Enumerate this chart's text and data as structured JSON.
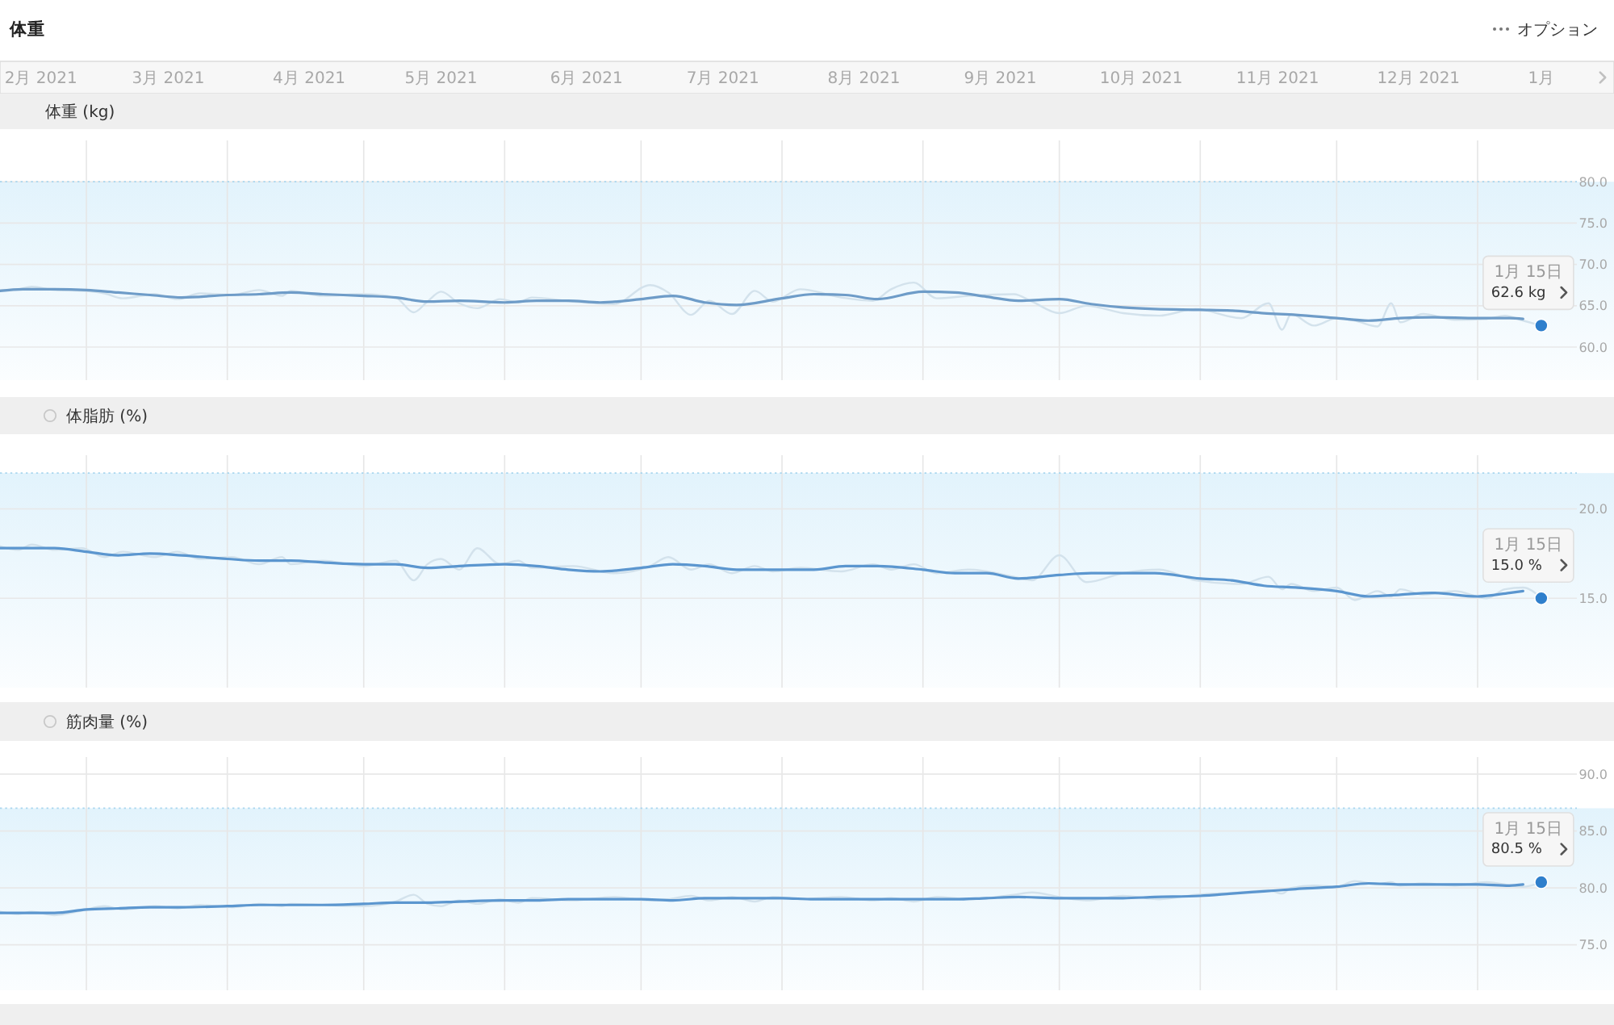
{
  "chart_data": [
    {
      "type": "line",
      "title": "体重",
      "ylabel": "体重 (kg)",
      "x": [
        "2021-02-10",
        "2021-02-14",
        "2021-02-17",
        "2021-02-22",
        "2021-02-28",
        "2021-03-05",
        "2021-03-09",
        "2021-03-16",
        "2021-03-21",
        "2021-03-26",
        "2021-04-02",
        "2021-04-08",
        "2021-04-13",
        "2021-04-15",
        "2021-04-22",
        "2021-05-01",
        "2021-05-08",
        "2021-05-12",
        "2021-05-15",
        "2021-05-18",
        "2021-05-22",
        "2021-05-26",
        "2021-05-31",
        "2021-06-04",
        "2021-06-07",
        "2021-06-16",
        "2021-06-25",
        "2021-07-03",
        "2021-07-07",
        "2021-07-12",
        "2021-07-16",
        "2021-07-21",
        "2021-07-26",
        "2021-07-30",
        "2021-08-05",
        "2021-08-14",
        "2021-08-21",
        "2021-08-25",
        "2021-08-30",
        "2021-09-04",
        "2021-09-11",
        "2021-09-21",
        "2021-09-25",
        "2021-10-01",
        "2021-10-07",
        "2021-10-15",
        "2021-10-23",
        "2021-10-31",
        "2021-11-10",
        "2021-11-16",
        "2021-11-19",
        "2021-11-21",
        "2021-11-26",
        "2021-12-01",
        "2021-12-05",
        "2021-12-10",
        "2021-12-13",
        "2021-12-15",
        "2021-12-20",
        "2021-12-27",
        "2022-01-03",
        "2022-01-07",
        "2022-01-11",
        "2022-01-15"
      ],
      "series": [
        {
          "color": "#d3e2ec",
          "values": [
            66.9,
            67.0,
            67.3,
            66.9,
            66.8,
            66.5,
            65.9,
            66.4,
            65.8,
            66.5,
            66.3,
            66.9,
            66.2,
            66.8,
            66.2,
            66.4,
            66.0,
            64.2,
            65.5,
            66.7,
            65.3,
            64.7,
            65.8,
            65.4,
            66.0,
            65.5,
            65.2,
            67.5,
            66.6,
            63.9,
            65.6,
            64.0,
            66.8,
            65.5,
            67.0,
            66.0,
            65.6,
            67.0,
            67.8,
            65.9,
            66.2,
            66.4,
            65.5,
            64.1,
            65.0,
            64.1,
            63.8,
            64.6,
            63.5,
            65.3,
            62.1,
            64.0,
            62.6,
            63.5,
            63.2,
            62.5,
            65.3,
            63.0,
            64.0,
            63.3,
            63.4,
            63.8,
            63.2,
            62.6
          ]
        },
        {
          "color": "#6e9cc8",
          "x": [
            "2021-02-10",
            "2021-02-15",
            "2021-02-22",
            "2021-03-01",
            "2021-03-08",
            "2021-03-15",
            "2021-03-22",
            "2021-04-01",
            "2021-04-08",
            "2021-04-15",
            "2021-04-22",
            "2021-05-01",
            "2021-05-08",
            "2021-05-15",
            "2021-05-22",
            "2021-06-01",
            "2021-06-08",
            "2021-06-15",
            "2021-06-22",
            "2021-07-01",
            "2021-07-08",
            "2021-07-15",
            "2021-07-22",
            "2021-08-01",
            "2021-08-08",
            "2021-08-15",
            "2021-08-22",
            "2021-09-01",
            "2021-09-08",
            "2021-09-15",
            "2021-09-22",
            "2021-10-01",
            "2021-10-08",
            "2021-10-15",
            "2021-10-22",
            "2021-11-01",
            "2021-11-08",
            "2021-11-15",
            "2021-11-22",
            "2021-12-01",
            "2021-12-08",
            "2021-12-15",
            "2021-12-22",
            "2022-01-01",
            "2022-01-08",
            "2022-01-11"
          ],
          "values": [
            66.8,
            67.0,
            67.0,
            66.9,
            66.6,
            66.3,
            66.0,
            66.3,
            66.4,
            66.6,
            66.4,
            66.2,
            66.0,
            65.5,
            65.6,
            65.4,
            65.6,
            65.6,
            65.4,
            65.8,
            66.2,
            65.4,
            65.1,
            65.9,
            66.4,
            66.3,
            65.8,
            66.7,
            66.6,
            66.1,
            65.6,
            65.8,
            65.2,
            64.8,
            64.6,
            64.5,
            64.4,
            64.1,
            63.9,
            63.5,
            63.2,
            63.5,
            63.6,
            63.5,
            63.5,
            63.4
          ]
        },
        {
          "type": "scatter",
          "marker": "circle",
          "color": "#2f7fcc",
          "x": [
            "2022-01-15"
          ],
          "values": [
            62.6
          ]
        }
      ],
      "xlim": [
        "2021-02-10",
        "2022-01-31"
      ],
      "ylim": [
        56,
        85
      ],
      "xticks": [
        {
          "value": "2021-02-19",
          "label": "2月 2021"
        },
        {
          "value": "2021-03-01",
          "label": null
        },
        {
          "value": "2021-03-19",
          "label": "3月 2021"
        },
        {
          "value": "2021-04-01",
          "label": null
        },
        {
          "value": "2021-04-19",
          "label": "4月 2021"
        },
        {
          "value": "2021-05-01",
          "label": null
        },
        {
          "value": "2021-05-18",
          "label": "5月 2021"
        },
        {
          "value": "2021-06-01",
          "label": null
        },
        {
          "value": "2021-06-19",
          "label": "6月 2021"
        },
        {
          "value": "2021-07-01",
          "label": null
        },
        {
          "value": "2021-07-19",
          "label": "7月 2021"
        },
        {
          "value": "2021-08-01",
          "label": null
        },
        {
          "value": "2021-08-19",
          "label": "8月 2021"
        },
        {
          "value": "2021-09-01",
          "label": null
        },
        {
          "value": "2021-09-18",
          "label": "9月 2021"
        },
        {
          "value": "2021-10-01",
          "label": null
        },
        {
          "value": "2021-10-19",
          "label": "10月 2021"
        },
        {
          "value": "2021-11-01",
          "label": null
        },
        {
          "value": "2021-11-18",
          "label": "11月 2021"
        },
        {
          "value": "2021-12-01",
          "label": null
        },
        {
          "value": "2021-12-19",
          "label": "12月 2021"
        },
        {
          "value": "2022-01-01",
          "label": null
        },
        {
          "value": "2022-01-15",
          "label": "1月"
        }
      ],
      "yticks": [
        {
          "value": 60,
          "label": "60.0"
        },
        {
          "value": 65,
          "label": "65.0"
        },
        {
          "value": 70,
          "label": "70.0"
        },
        {
          "value": 75,
          "label": "75.0"
        },
        {
          "value": 80,
          "label": "80.0"
        }
      ],
      "grid": true,
      "bands": [
        {
          "axis": "y",
          "from": 56,
          "to": 80,
          "color": "#e2f3fc"
        }
      ],
      "ref_lines": [
        {
          "axis": "y",
          "value": 80,
          "color": "#a9d6ee",
          "line_style": "dotted"
        }
      ],
      "annotations": [
        "オプション",
        {
          "text": "1月 15日",
          "x": "2022-01-15",
          "y": 62.6
        },
        {
          "text": "62.6 kg",
          "x": "2022-01-15",
          "y": 62.6
        }
      ]
    },
    {
      "type": "line",
      "ylabel": "体脂肪 (%)",
      "x": [
        "2021-02-10",
        "2021-02-14",
        "2021-02-17",
        "2021-02-22",
        "2021-02-28",
        "2021-03-05",
        "2021-03-09",
        "2021-03-16",
        "2021-03-21",
        "2021-03-26",
        "2021-04-02",
        "2021-04-08",
        "2021-04-13",
        "2021-04-15",
        "2021-04-22",
        "2021-05-01",
        "2021-05-08",
        "2021-05-12",
        "2021-05-15",
        "2021-05-18",
        "2021-05-22",
        "2021-05-26",
        "2021-05-31",
        "2021-06-04",
        "2021-06-07",
        "2021-06-16",
        "2021-06-25",
        "2021-07-03",
        "2021-07-07",
        "2021-07-12",
        "2021-07-16",
        "2021-07-21",
        "2021-07-26",
        "2021-07-30",
        "2021-08-05",
        "2021-08-14",
        "2021-08-21",
        "2021-08-25",
        "2021-08-30",
        "2021-09-04",
        "2021-09-11",
        "2021-09-21",
        "2021-09-25",
        "2021-10-01",
        "2021-10-07",
        "2021-10-15",
        "2021-10-23",
        "2021-10-31",
        "2021-11-10",
        "2021-11-16",
        "2021-11-19",
        "2021-11-21",
        "2021-11-26",
        "2021-12-01",
        "2021-12-05",
        "2021-12-10",
        "2021-12-13",
        "2021-12-15",
        "2021-12-20",
        "2021-12-27",
        "2022-01-03",
        "2022-01-07",
        "2022-01-11",
        "2022-01-15"
      ],
      "series": [
        {
          "color": "#d3e2ec",
          "values": [
            17.9,
            17.7,
            18.0,
            17.7,
            17.8,
            17.3,
            17.6,
            17.3,
            17.6,
            17.2,
            17.3,
            16.9,
            17.3,
            16.9,
            17.1,
            16.8,
            17.1,
            16.0,
            16.9,
            17.2,
            16.6,
            17.8,
            16.9,
            17.1,
            16.7,
            16.8,
            16.4,
            16.8,
            17.3,
            16.6,
            16.9,
            16.4,
            16.8,
            16.5,
            16.7,
            16.5,
            16.9,
            16.6,
            16.9,
            16.4,
            16.6,
            16.2,
            16.0,
            17.4,
            15.9,
            16.4,
            16.6,
            16.0,
            15.8,
            16.2,
            15.5,
            15.8,
            15.4,
            15.6,
            14.9,
            15.4,
            15.1,
            15.5,
            15.2,
            15.4,
            15.0,
            15.5,
            15.6,
            15.0
          ]
        },
        {
          "color": "#5b96cf",
          "x": [
            "2021-02-10",
            "2021-02-15",
            "2021-02-22",
            "2021-03-01",
            "2021-03-08",
            "2021-03-15",
            "2021-03-22",
            "2021-04-01",
            "2021-04-08",
            "2021-04-15",
            "2021-04-22",
            "2021-05-01",
            "2021-05-08",
            "2021-05-15",
            "2021-05-22",
            "2021-06-01",
            "2021-06-08",
            "2021-06-15",
            "2021-06-22",
            "2021-07-01",
            "2021-07-08",
            "2021-07-15",
            "2021-07-22",
            "2021-08-01",
            "2021-08-08",
            "2021-08-15",
            "2021-08-22",
            "2021-09-01",
            "2021-09-08",
            "2021-09-15",
            "2021-09-22",
            "2021-10-01",
            "2021-10-08",
            "2021-10-15",
            "2021-10-22",
            "2021-11-01",
            "2021-11-08",
            "2021-11-15",
            "2021-11-22",
            "2021-12-01",
            "2021-12-08",
            "2021-12-15",
            "2021-12-22",
            "2022-01-01",
            "2022-01-08",
            "2022-01-11"
          ],
          "values": [
            17.8,
            17.8,
            17.8,
            17.6,
            17.4,
            17.5,
            17.4,
            17.2,
            17.1,
            17.1,
            17.0,
            16.9,
            16.9,
            16.7,
            16.8,
            16.9,
            16.8,
            16.6,
            16.5,
            16.7,
            16.9,
            16.8,
            16.6,
            16.6,
            16.6,
            16.8,
            16.8,
            16.6,
            16.4,
            16.4,
            16.1,
            16.3,
            16.4,
            16.4,
            16.4,
            16.1,
            16.0,
            15.7,
            15.6,
            15.4,
            15.1,
            15.2,
            15.3,
            15.1,
            15.3,
            15.4
          ]
        },
        {
          "type": "scatter",
          "marker": "circle",
          "color": "#2f7fcc",
          "x": [
            "2022-01-15"
          ],
          "values": [
            15.0
          ]
        }
      ],
      "xlim": [
        "2021-02-10",
        "2022-01-31"
      ],
      "ylim": [
        10,
        23
      ],
      "xticks": [
        {
          "value": "2021-03-01",
          "label": null
        },
        {
          "value": "2021-04-01",
          "label": null
        },
        {
          "value": "2021-05-01",
          "label": null
        },
        {
          "value": "2021-06-01",
          "label": null
        },
        {
          "value": "2021-07-01",
          "label": null
        },
        {
          "value": "2021-08-01",
          "label": null
        },
        {
          "value": "2021-09-01",
          "label": null
        },
        {
          "value": "2021-10-01",
          "label": null
        },
        {
          "value": "2021-11-01",
          "label": null
        },
        {
          "value": "2021-12-01",
          "label": null
        },
        {
          "value": "2022-01-01",
          "label": null
        }
      ],
      "yticks": [
        {
          "value": 15,
          "label": "15.0"
        },
        {
          "value": 20,
          "label": "20.0"
        }
      ],
      "tick_labels": "y",
      "grid": true,
      "bands": [
        {
          "axis": "y",
          "from": 10,
          "to": 22,
          "color": "#e2f3fc"
        }
      ],
      "ref_lines": [
        {
          "axis": "y",
          "value": 22,
          "color": "#a9d6ee",
          "line_style": "dotted"
        }
      ],
      "annotations": [
        {
          "text": "1月 15日",
          "x": "2022-01-15",
          "y": 15.0
        },
        {
          "text": "15.0 %",
          "x": "2022-01-15",
          "y": 15.0
        }
      ]
    },
    {
      "type": "line",
      "ylabel": "筋肉量 (%)",
      "x": [
        "2021-02-10",
        "2021-02-14",
        "2021-02-17",
        "2021-02-22",
        "2021-02-28",
        "2021-03-05",
        "2021-03-09",
        "2021-03-16",
        "2021-03-21",
        "2021-03-26",
        "2021-04-02",
        "2021-04-08",
        "2021-04-13",
        "2021-04-15",
        "2021-04-22",
        "2021-05-01",
        "2021-05-08",
        "2021-05-12",
        "2021-05-15",
        "2021-05-18",
        "2021-05-22",
        "2021-05-26",
        "2021-05-31",
        "2021-06-04",
        "2021-06-07",
        "2021-06-16",
        "2021-06-25",
        "2021-07-03",
        "2021-07-07",
        "2021-07-12",
        "2021-07-16",
        "2021-07-21",
        "2021-07-26",
        "2021-07-30",
        "2021-08-05",
        "2021-08-14",
        "2021-08-21",
        "2021-08-25",
        "2021-08-30",
        "2021-09-04",
        "2021-09-11",
        "2021-09-21",
        "2021-09-25",
        "2021-10-01",
        "2021-10-07",
        "2021-10-15",
        "2021-10-23",
        "2021-10-31",
        "2021-11-10",
        "2021-11-16",
        "2021-11-19",
        "2021-11-21",
        "2021-11-26",
        "2021-12-01",
        "2021-12-05",
        "2021-12-10",
        "2021-12-13",
        "2021-12-15",
        "2021-12-20",
        "2021-12-27",
        "2022-01-03",
        "2022-01-07",
        "2022-01-11",
        "2022-01-15"
      ],
      "series": [
        {
          "color": "#d3e2ec",
          "values": [
            77.9,
            77.7,
            77.9,
            77.6,
            78.0,
            78.4,
            78.1,
            78.4,
            78.2,
            78.5,
            78.3,
            78.6,
            78.4,
            78.6,
            78.5,
            78.4,
            78.8,
            79.4,
            78.6,
            78.4,
            78.9,
            78.6,
            79.0,
            78.7,
            79.1,
            78.9,
            79.2,
            78.9,
            79.0,
            79.3,
            78.9,
            79.2,
            78.8,
            79.2,
            79.0,
            79.2,
            78.9,
            79.1,
            78.8,
            79.2,
            79.0,
            79.4,
            79.6,
            79.2,
            78.9,
            79.3,
            79.0,
            79.4,
            79.6,
            79.8,
            79.5,
            80.0,
            80.2,
            80.1,
            80.6,
            80.3,
            80.5,
            80.2,
            80.4,
            80.2,
            80.5,
            80.3,
            80.1,
            80.5
          ]
        },
        {
          "color": "#5b96cf",
          "x": [
            "2021-02-10",
            "2021-02-15",
            "2021-02-22",
            "2021-03-01",
            "2021-03-08",
            "2021-03-15",
            "2021-03-22",
            "2021-04-01",
            "2021-04-08",
            "2021-04-15",
            "2021-04-22",
            "2021-05-01",
            "2021-05-08",
            "2021-05-15",
            "2021-05-22",
            "2021-06-01",
            "2021-06-08",
            "2021-06-15",
            "2021-06-22",
            "2021-07-01",
            "2021-07-08",
            "2021-07-15",
            "2021-07-22",
            "2021-08-01",
            "2021-08-08",
            "2021-08-15",
            "2021-08-22",
            "2021-09-01",
            "2021-09-08",
            "2021-09-15",
            "2021-09-22",
            "2021-10-01",
            "2021-10-08",
            "2021-10-15",
            "2021-10-22",
            "2021-11-01",
            "2021-11-08",
            "2021-11-15",
            "2021-11-22",
            "2021-12-01",
            "2021-12-08",
            "2021-12-15",
            "2021-12-22",
            "2022-01-01",
            "2022-01-08",
            "2022-01-11"
          ],
          "values": [
            77.8,
            77.8,
            77.8,
            78.1,
            78.2,
            78.3,
            78.3,
            78.4,
            78.5,
            78.5,
            78.5,
            78.6,
            78.7,
            78.7,
            78.8,
            78.9,
            78.9,
            79.0,
            79.0,
            79.0,
            78.9,
            79.1,
            79.1,
            79.1,
            79.0,
            79.0,
            79.0,
            79.0,
            79.0,
            79.1,
            79.2,
            79.1,
            79.1,
            79.1,
            79.2,
            79.3,
            79.5,
            79.7,
            79.9,
            80.1,
            80.4,
            80.3,
            80.3,
            80.3,
            80.2,
            80.3
          ]
        },
        {
          "type": "scatter",
          "marker": "circle",
          "color": "#2f7fcc",
          "x": [
            "2022-01-15"
          ],
          "values": [
            80.5
          ]
        }
      ],
      "xlim": [
        "2021-02-10",
        "2022-01-31"
      ],
      "ylim": [
        71,
        91.5
      ],
      "xticks": [
        {
          "value": "2021-03-01",
          "label": null
        },
        {
          "value": "2021-04-01",
          "label": null
        },
        {
          "value": "2021-05-01",
          "label": null
        },
        {
          "value": "2021-06-01",
          "label": null
        },
        {
          "value": "2021-07-01",
          "label": null
        },
        {
          "value": "2021-08-01",
          "label": null
        },
        {
          "value": "2021-09-01",
          "label": null
        },
        {
          "value": "2021-10-01",
          "label": null
        },
        {
          "value": "2021-11-01",
          "label": null
        },
        {
          "value": "2021-12-01",
          "label": null
        },
        {
          "value": "2022-01-01",
          "label": null
        }
      ],
      "yticks": [
        {
          "value": 75,
          "label": "75.0"
        },
        {
          "value": 80,
          "label": "80.0"
        },
        {
          "value": 85,
          "label": "85.0"
        },
        {
          "value": 90,
          "label": "90.0"
        }
      ],
      "tick_labels": "y",
      "grid": true,
      "bands": [
        {
          "axis": "y",
          "from": 71,
          "to": 87,
          "color": "#e2f3fc"
        }
      ],
      "ref_lines": [
        {
          "axis": "y",
          "value": 87,
          "color": "#a9d6ee",
          "line_style": "dotted"
        }
      ],
      "annotations": [
        {
          "text": "1月 15日",
          "x": "2022-01-15",
          "y": 80.5
        },
        {
          "text": "80.5 %",
          "x": "2022-01-15",
          "y": 80.5
        }
      ]
    }
  ]
}
